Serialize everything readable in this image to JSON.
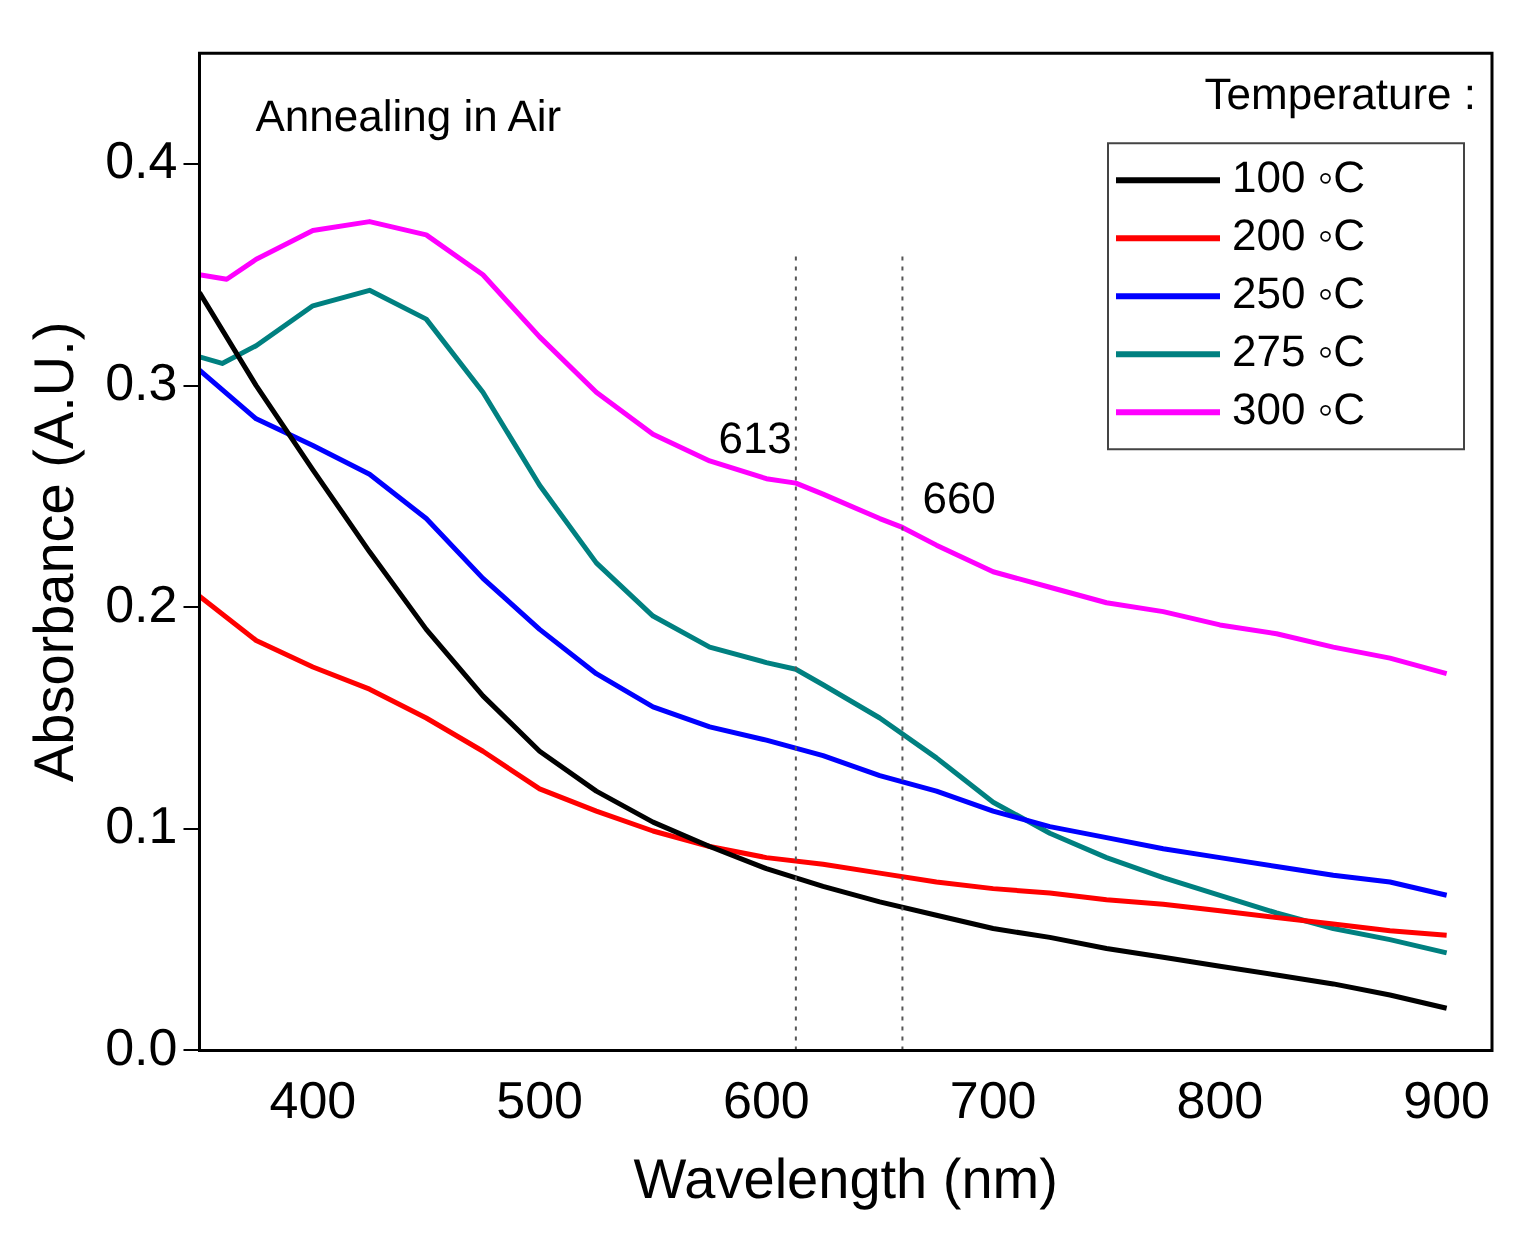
{
  "chart_data": {
    "type": "line",
    "xlabel": "Wavelength (nm)",
    "ylabel": "Absorbance (A.U.)",
    "legend_title": "Temperature :",
    "legend": "top right",
    "grid": false,
    "marker": "none",
    "line_style": "solid",
    "xlim": [
      350,
      920
    ],
    "xticks": [
      400,
      500,
      600,
      700,
      800,
      900
    ],
    "ylim": [
      0,
      0.45
    ],
    "yticks": [
      {
        "value": 0,
        "label": "0.0"
      },
      0.1,
      0.2,
      0.3,
      0.4
    ],
    "annotations": [
      "Annealing in Air",
      "613",
      "660"
    ],
    "ref_lines": [
      {
        "axis": "x",
        "value": 613,
        "color": "#555555",
        "line_style": "dotted"
      },
      {
        "axis": "x",
        "value": 660,
        "color": "#555555",
        "line_style": "dotted"
      }
    ],
    "series": [
      {
        "name": "100 ◦C",
        "color": "#000000",
        "x": [
          350,
          375,
          400,
          425,
          450,
          475,
          500,
          525,
          550,
          575,
          600,
          625,
          650,
          675,
          700,
          725,
          750,
          775,
          800,
          825,
          850,
          875,
          900
        ],
        "values": [
          0.342,
          0.3,
          0.262,
          0.225,
          0.19,
          0.16,
          0.135,
          0.117,
          0.103,
          0.092,
          0.082,
          0.074,
          0.067,
          0.061,
          0.055,
          0.051,
          0.046,
          0.042,
          0.038,
          0.034,
          0.03,
          0.025,
          0.019
        ]
      },
      {
        "name": "200 ◦C",
        "color": "#ff0000",
        "x": [
          350,
          375,
          400,
          425,
          450,
          475,
          500,
          525,
          550,
          575,
          600,
          625,
          650,
          675,
          700,
          725,
          750,
          775,
          800,
          825,
          850,
          875,
          900
        ],
        "values": [
          0.205,
          0.185,
          0.173,
          0.163,
          0.15,
          0.135,
          0.118,
          0.108,
          0.099,
          0.092,
          0.087,
          0.084,
          0.08,
          0.076,
          0.073,
          0.071,
          0.068,
          0.066,
          0.063,
          0.06,
          0.057,
          0.054,
          0.052
        ]
      },
      {
        "name": "250 ◦C",
        "color": "#0000ff",
        "x": [
          350,
          375,
          400,
          425,
          450,
          475,
          500,
          525,
          550,
          575,
          600,
          625,
          650,
          675,
          700,
          725,
          750,
          775,
          800,
          825,
          850,
          875,
          900
        ],
        "values": [
          0.307,
          0.285,
          0.273,
          0.26,
          0.24,
          0.213,
          0.19,
          0.17,
          0.155,
          0.146,
          0.14,
          0.133,
          0.124,
          0.117,
          0.108,
          0.101,
          0.096,
          0.091,
          0.087,
          0.083,
          0.079,
          0.076,
          0.07
        ]
      },
      {
        "name": "275 ◦C",
        "color": "#008080",
        "x": [
          350,
          360,
          375,
          400,
          425,
          450,
          475,
          500,
          525,
          550,
          575,
          600,
          613,
          625,
          650,
          675,
          700,
          725,
          750,
          775,
          800,
          825,
          850,
          875,
          900
        ],
        "values": [
          0.313,
          0.31,
          0.318,
          0.336,
          0.343,
          0.33,
          0.297,
          0.255,
          0.22,
          0.196,
          0.182,
          0.175,
          0.172,
          0.165,
          0.15,
          0.132,
          0.112,
          0.098,
          0.087,
          0.078,
          0.07,
          0.062,
          0.055,
          0.05,
          0.044
        ]
      },
      {
        "name": "300 ◦C",
        "color": "#ff00ff",
        "x": [
          350,
          362,
          375,
          400,
          425,
          450,
          475,
          500,
          525,
          550,
          575,
          600,
          613,
          625,
          650,
          660,
          675,
          700,
          725,
          750,
          775,
          800,
          825,
          850,
          875,
          900
        ],
        "values": [
          0.35,
          0.348,
          0.357,
          0.37,
          0.374,
          0.368,
          0.35,
          0.322,
          0.297,
          0.278,
          0.266,
          0.258,
          0.256,
          0.251,
          0.24,
          0.236,
          0.228,
          0.216,
          0.209,
          0.202,
          0.198,
          0.192,
          0.188,
          0.182,
          0.177,
          0.17
        ]
      }
    ]
  }
}
